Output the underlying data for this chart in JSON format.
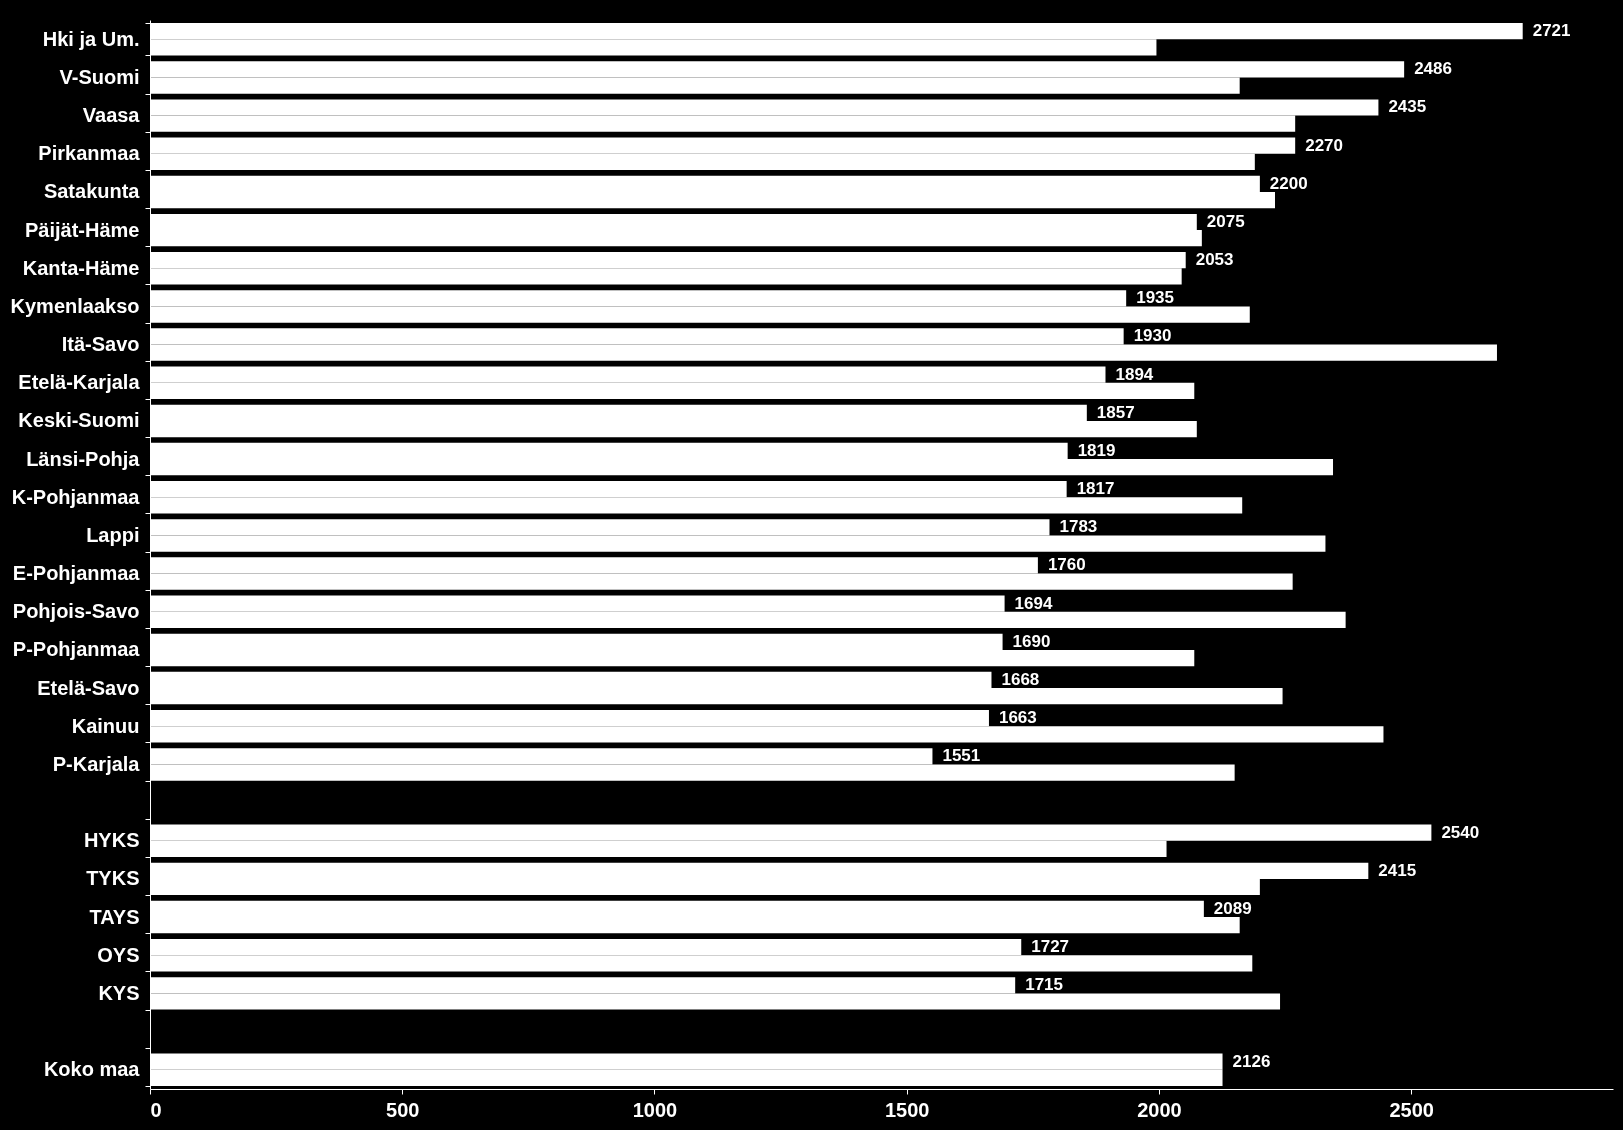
{
  "chart_data": {
    "type": "bar",
    "orientation": "horizontal",
    "categories": [
      "Hki ja Um.",
      "V-Suomi",
      "Vaasa",
      "Pirkanmaa",
      "Satakunta",
      "Päijät-Häme",
      "Kanta-Häme",
      "Kymenlaakso",
      "Itä-Savo",
      "Etelä-Karjala",
      "Keski-Suomi",
      "Länsi-Pohja",
      "K-Pohjanmaa",
      "Lappi",
      "E-Pohjanmaa",
      "Pohjois-Savo",
      "P-Pohjanmaa",
      "Etelä-Savo",
      "Kainuu",
      "P-Karjala",
      null,
      "HYKS",
      "TYKS",
      "TAYS",
      "OYS",
      "KYS",
      null,
      "Koko maa"
    ],
    "series": [
      {
        "color": "#ffffff",
        "values": [
          2721,
          2486,
          2435,
          2270,
          2200,
          2075,
          2053,
          1935,
          1930,
          1894,
          1857,
          1819,
          1817,
          1783,
          1760,
          1694,
          1690,
          1668,
          1663,
          1551,
          null,
          2540,
          2415,
          2089,
          1727,
          1715,
          null,
          2126
        ],
        "value_labels": [
          "2721",
          "2486",
          "2435",
          "2270",
          "2200",
          "2075",
          "2053",
          "1935",
          "1930",
          "1894",
          "1857",
          "1819",
          "1817",
          "1783",
          "1760",
          "1694",
          "1690",
          "1668",
          "1663",
          "1551",
          null,
          "2540",
          "2415",
          "2089",
          "1727",
          "1715",
          null,
          "2126"
        ]
      },
      {
        "color": "#ffffff",
        "values": [
          1995,
          2160,
          2270,
          2190,
          2230,
          2085,
          2045,
          2180,
          2670,
          2070,
          2075,
          2345,
          2165,
          2330,
          2265,
          2370,
          2070,
          2245,
          2445,
          2150,
          null,
          2015,
          2200,
          2160,
          2185,
          2240,
          null,
          2126
        ]
      }
    ],
    "xlim": [
      0,
      2900
    ],
    "xticks": [
      0,
      500,
      1000,
      1500,
      2000,
      2500
    ],
    "grid": false
  }
}
